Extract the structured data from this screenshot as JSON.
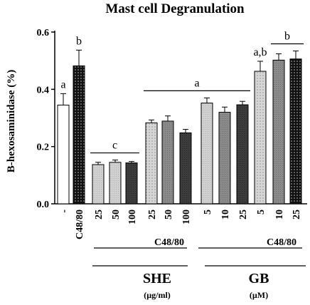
{
  "chart_data": {
    "type": "bar",
    "title": "Mast cell Degranulation",
    "ylabel": "B-hexosaminidase (%)",
    "ylim": [
      0.0,
      0.6
    ],
    "yticks": [
      "0.0",
      "0.2",
      "0.4",
      "0.6"
    ],
    "grid": false,
    "categories": [
      "-",
      "C48/80",
      "25",
      "50",
      "100",
      "25",
      "50",
      "100",
      "5",
      "10",
      "25",
      "5",
      "10",
      "25"
    ],
    "values": [
      0.345,
      0.482,
      0.137,
      0.145,
      0.143,
      0.283,
      0.289,
      0.248,
      0.352,
      0.32,
      0.346,
      0.463,
      0.502,
      0.506
    ],
    "errors": [
      0.04,
      0.055,
      0.008,
      0.008,
      0.005,
      0.01,
      0.018,
      0.012,
      0.018,
      0.018,
      0.012,
      0.035,
      0.022,
      0.028
    ],
    "bar_fills": [
      "white",
      "black-dots",
      "light-gray",
      "light-gray",
      "dark-gray",
      "light-dots",
      "medium-gray",
      "dark-gray",
      "light-gray",
      "medium-gray",
      "dark-gray",
      "light-dots",
      "medium-gray",
      "black-dots"
    ],
    "significance": [
      {
        "text": "a",
        "bars": [
          0
        ]
      },
      {
        "text": "b",
        "bars": [
          1
        ]
      },
      {
        "text": "c",
        "bars": [
          2,
          4
        ],
        "line": true
      },
      {
        "text": "a",
        "bars": [
          5,
          10
        ],
        "line": true
      },
      {
        "text": "a,b",
        "bars": [
          11
        ]
      },
      {
        "text": "b",
        "bars": [
          12,
          13
        ],
        "line": true
      }
    ],
    "stimulus_label": "C48/80",
    "groups": [
      {
        "name": "SHE",
        "unit": "(µg/ml)",
        "bars": [
          2,
          7
        ]
      },
      {
        "name": "GB",
        "unit": "(µM)",
        "bars": [
          8,
          13
        ]
      }
    ]
  }
}
